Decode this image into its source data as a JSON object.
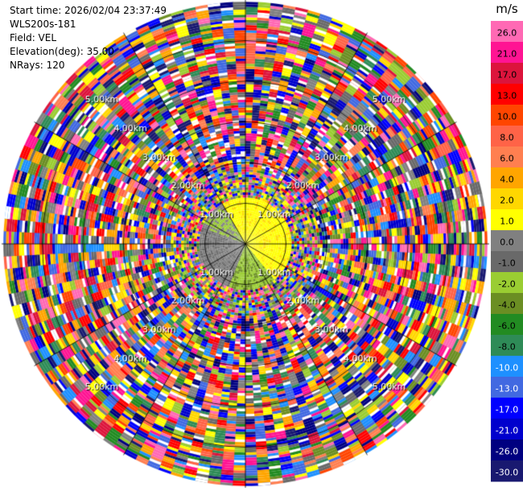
{
  "header": {
    "start_time": "Start time: 2026/02/04 23:37:49",
    "instrument": "WLS200s-181",
    "field": "Field: VEL",
    "elevation": "Elevation(deg): 35.00",
    "nrays": "NRays: 120"
  },
  "chart_data": {
    "type": "heatmap",
    "projection": "polar-ppi",
    "field": "VEL",
    "elevation_deg": 35.0,
    "nrays": 120,
    "max_range_km": 6.0,
    "range_ring_labels": [
      "1.00km",
      "2.00km",
      "3.00km",
      "4.00km",
      "5.00km"
    ],
    "colorbar": {
      "unit": "m/s",
      "tick_labels": [
        "26.0",
        "21.0",
        "17.0",
        "13.0",
        "10.0",
        "8.0",
        "6.0",
        "4.0",
        "2.0",
        "1.0",
        "0.0",
        "-1.0",
        "-2.0",
        "-4.0",
        "-6.0",
        "-8.0",
        "-10.0",
        "-13.0",
        "-17.0",
        "-21.0",
        "-26.0",
        "-30.0"
      ],
      "colors": [
        "#ff69b4",
        "#ff1493",
        "#dc143c",
        "#ff0000",
        "#ff4500",
        "#ff6347",
        "#ff7f50",
        "#ffa500",
        "#ffd700",
        "#ffff00",
        "#808080",
        "#696969",
        "#9acd32",
        "#6b8e23",
        "#228b22",
        "#2e8b57",
        "#1e90ff",
        "#4169e1",
        "#0000ff",
        "#0000cd",
        "#000080",
        "#191970"
      ]
    }
  }
}
